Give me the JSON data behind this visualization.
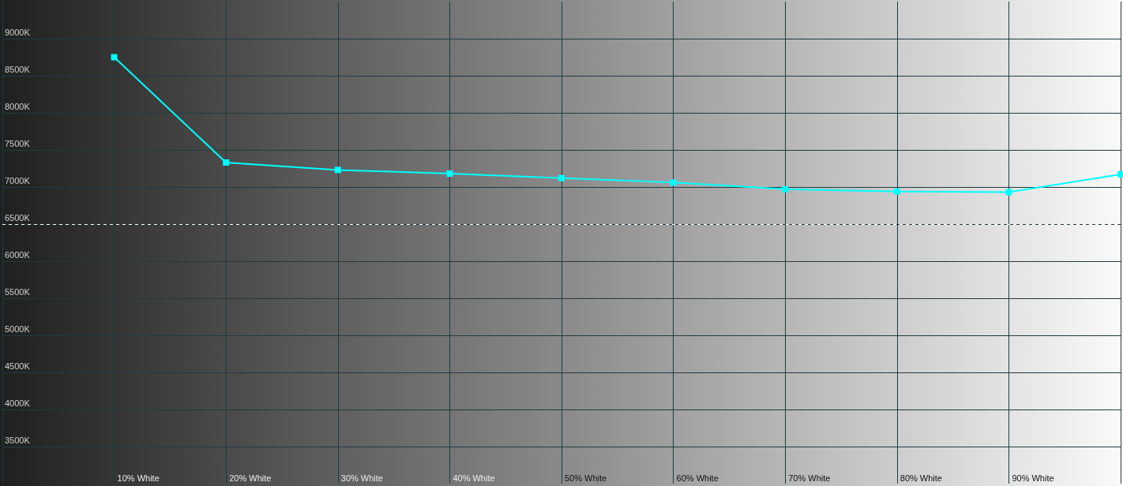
{
  "chart_data": {
    "type": "line",
    "categories": [
      null,
      "10% White",
      "20% White",
      "30% White",
      "40% White",
      "50% White",
      "60% White",
      "70% White",
      "80% White",
      "90% White",
      null
    ],
    "series": [
      {
        "color": "#00ffff",
        "values": [
          null,
          8750,
          7330,
          7230,
          7180,
          7120,
          7060,
          6970,
          6940,
          6930,
          7170
        ]
      }
    ],
    "ylim": [
      3000,
      9500
    ],
    "yticks": [
      {
        "value": 3500,
        "label": "3500K"
      },
      {
        "value": 4000,
        "label": "4000K"
      },
      {
        "value": 4500,
        "label": "4500K"
      },
      {
        "value": 5000,
        "label": "5000K"
      },
      {
        "value": 5500,
        "label": "5500K"
      },
      {
        "value": 6000,
        "label": "6000K"
      },
      {
        "value": 6500,
        "label": "6500K"
      },
      {
        "value": 7000,
        "label": "7000K"
      },
      {
        "value": 7500,
        "label": "7500K"
      },
      {
        "value": 8000,
        "label": "8000K"
      },
      {
        "value": 8500,
        "label": "8500K"
      },
      {
        "value": 9000,
        "label": "9000K"
      }
    ],
    "grid": true,
    "marker": "square",
    "line_style": "solid",
    "ref_lines": [
      {
        "axis": "y",
        "value": 6500,
        "line_style": "dashed",
        "color": "#ffffff"
      }
    ]
  }
}
